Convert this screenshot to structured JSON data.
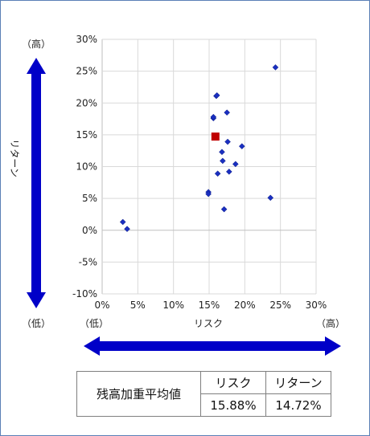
{
  "chart_data": {
    "type": "scatter",
    "xlabel": "リスク",
    "ylabel": "リターン",
    "xlim": [
      0,
      30
    ],
    "ylim": [
      -10,
      30
    ],
    "x_ticks": [
      "0%",
      "5%",
      "10%",
      "15%",
      "20%",
      "25%",
      "30%"
    ],
    "y_ticks": [
      "30%",
      "25%",
      "20%",
      "15%",
      "10%",
      "5%",
      "0%",
      "-5%",
      "-10%"
    ],
    "grid": true,
    "series": [
      {
        "marker": "diamond",
        "color": "#1a2fc0",
        "points": [
          {
            "x": 2.9,
            "y": 1.3
          },
          {
            "x": 3.5,
            "y": 0.2
          },
          {
            "x": 14.9,
            "y": 6.0
          },
          {
            "x": 14.9,
            "y": 5.7
          },
          {
            "x": 15.6,
            "y": 17.6
          },
          {
            "x": 15.6,
            "y": 17.8
          },
          {
            "x": 16.0,
            "y": 21.1
          },
          {
            "x": 16.1,
            "y": 21.2
          },
          {
            "x": 16.2,
            "y": 8.9
          },
          {
            "x": 16.8,
            "y": 12.3
          },
          {
            "x": 16.9,
            "y": 10.9
          },
          {
            "x": 17.1,
            "y": 3.3
          },
          {
            "x": 17.5,
            "y": 18.5
          },
          {
            "x": 17.6,
            "y": 13.9
          },
          {
            "x": 17.8,
            "y": 9.2
          },
          {
            "x": 18.7,
            "y": 10.4
          },
          {
            "x": 19.6,
            "y": 13.2
          },
          {
            "x": 23.6,
            "y": 5.1
          },
          {
            "x": 24.3,
            "y": 25.6
          }
        ]
      },
      {
        "marker": "square",
        "color": "#c00000",
        "points": [
          {
            "x": 15.88,
            "y": 14.72
          }
        ]
      }
    ]
  },
  "axis_labels": {
    "y_high": "（高）",
    "y_low": "（低）",
    "y_name": "リターン",
    "x_low": "（低）",
    "x_high": "（高）",
    "x_name": "リスク"
  },
  "arrow_color": "#0000c8",
  "summary": {
    "row_label": "残高加重平均値",
    "col_risk": "リスク",
    "col_return": "リターン",
    "risk_value": "15.88%",
    "return_value": "14.72%"
  }
}
